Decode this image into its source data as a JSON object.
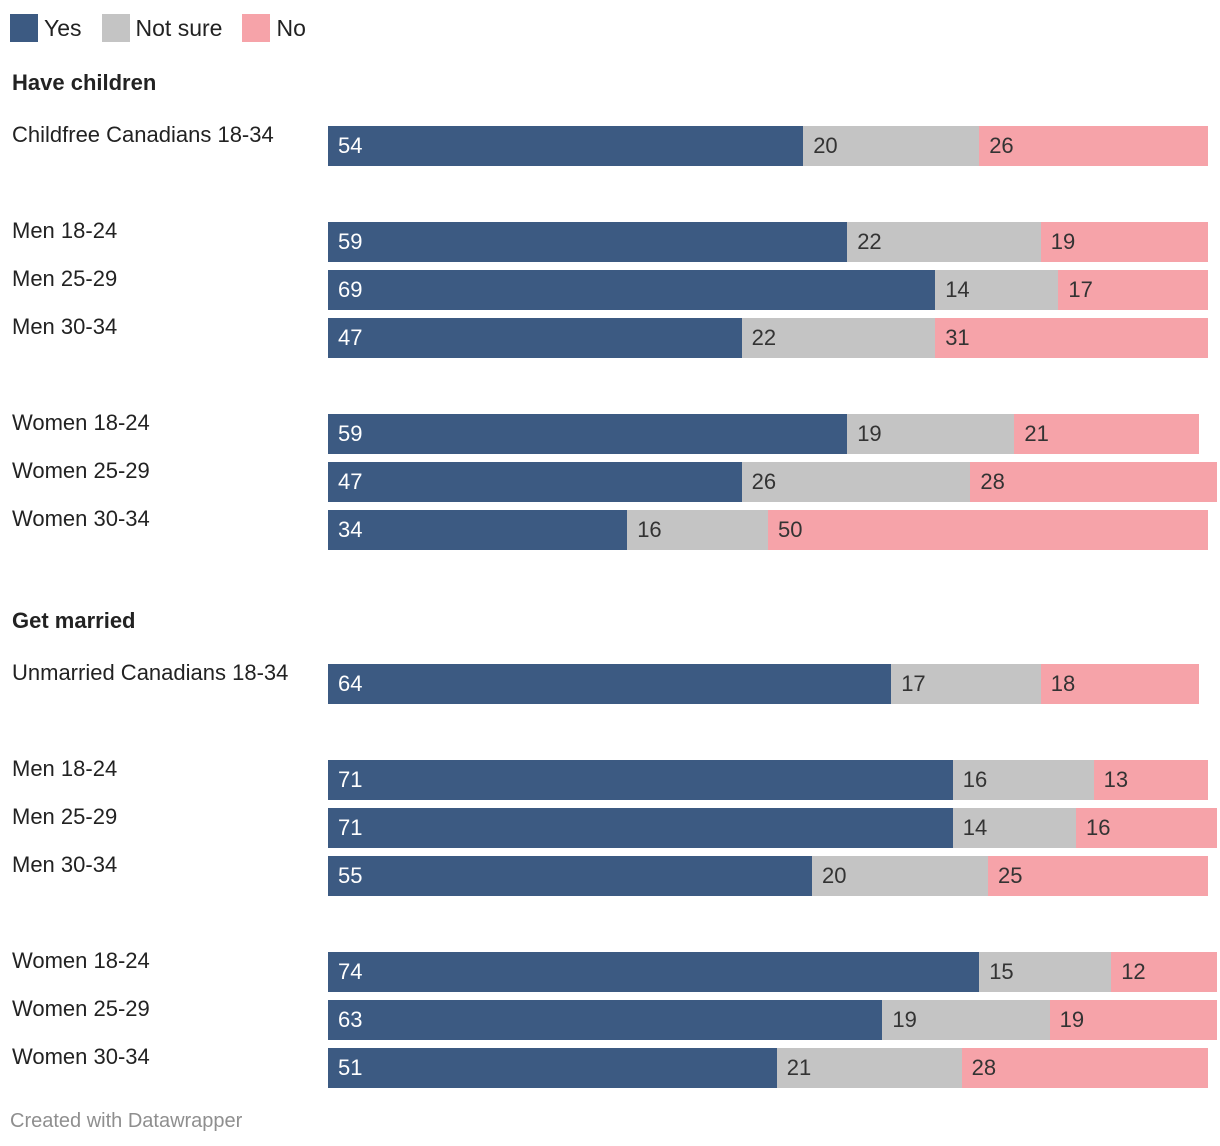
{
  "legend": [
    {
      "key": "yes",
      "label": "Yes",
      "color": "#3c5a82"
    },
    {
      "key": "not_sure",
      "label": "Not sure",
      "color": "#c4c4c4"
    },
    {
      "key": "no",
      "label": "No",
      "color": "#f6a3a9"
    }
  ],
  "chart_data": {
    "type": "bar",
    "orientation": "horizontal",
    "stacked": true,
    "unit": "percent",
    "series_names": [
      "Yes",
      "Not sure",
      "No"
    ],
    "groups": [
      {
        "heading": "Have children",
        "rows": [
          {
            "label": "Childfree Canadians 18-34",
            "values": [
              54,
              20,
              26
            ]
          },
          {
            "label": "Men 18-24",
            "values": [
              59,
              22,
              19
            ]
          },
          {
            "label": "Men 25-29",
            "values": [
              69,
              14,
              17
            ]
          },
          {
            "label": "Men 30-34",
            "values": [
              47,
              22,
              31
            ]
          },
          {
            "label": "Women 18-24",
            "values": [
              59,
              19,
              21
            ]
          },
          {
            "label": "Women 25-29",
            "values": [
              47,
              26,
              28
            ]
          },
          {
            "label": "Women 30-34",
            "values": [
              34,
              16,
              50
            ]
          }
        ]
      },
      {
        "heading": "Get married",
        "rows": [
          {
            "label": "Unmarried Canadians 18-34",
            "values": [
              64,
              17,
              18
            ]
          },
          {
            "label": "Men 18-24",
            "values": [
              71,
              16,
              13
            ]
          },
          {
            "label": "Men 25-29",
            "values": [
              71,
              14,
              16
            ]
          },
          {
            "label": "Men 30-34",
            "values": [
              55,
              20,
              25
            ]
          },
          {
            "label": "Women 18-24",
            "values": [
              74,
              15,
              12
            ]
          },
          {
            "label": "Women 25-29",
            "values": [
              63,
              19,
              19
            ]
          },
          {
            "label": "Women 30-34",
            "values": [
              51,
              21,
              28
            ]
          }
        ]
      }
    ]
  },
  "footer": {
    "credit": "Created with Datawrapper"
  }
}
